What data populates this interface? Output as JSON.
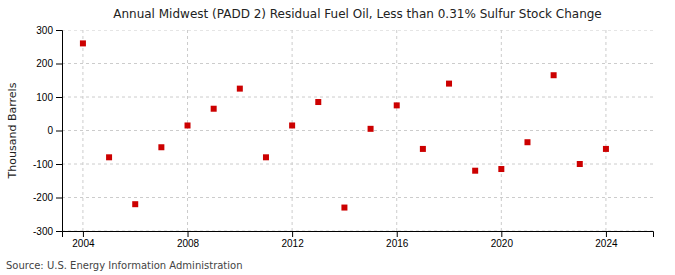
{
  "chart_data": {
    "type": "scatter",
    "title": "Annual Midwest (PADD 2) Residual Fuel Oil, Less than 0.31% Sulfur Stock Change",
    "ylabel": "Thousand Barrels",
    "source": "Source: U.S. Energy Information Administration",
    "x": [
      2004,
      2005,
      2006,
      2007,
      2008,
      2009,
      2010,
      2011,
      2012,
      2013,
      2014,
      2015,
      2016,
      2017,
      2018,
      2019,
      2020,
      2021,
      2022,
      2023,
      2024
    ],
    "values": [
      260,
      -80,
      -220,
      -50,
      15,
      65,
      125,
      -80,
      15,
      85,
      -230,
      5,
      75,
      -55,
      140,
      -120,
      -115,
      -35,
      165,
      -100,
      -55
    ],
    "color": "#cc0000",
    "marker": "square",
    "xlim": [
      2003.2,
      2025.8
    ],
    "ylim": [
      -300,
      300
    ],
    "xticks": [
      2004,
      2008,
      2012,
      2016,
      2020,
      2024
    ],
    "yticks": [
      -300,
      -200,
      -100,
      0,
      100,
      200,
      300
    ],
    "grid": true
  }
}
